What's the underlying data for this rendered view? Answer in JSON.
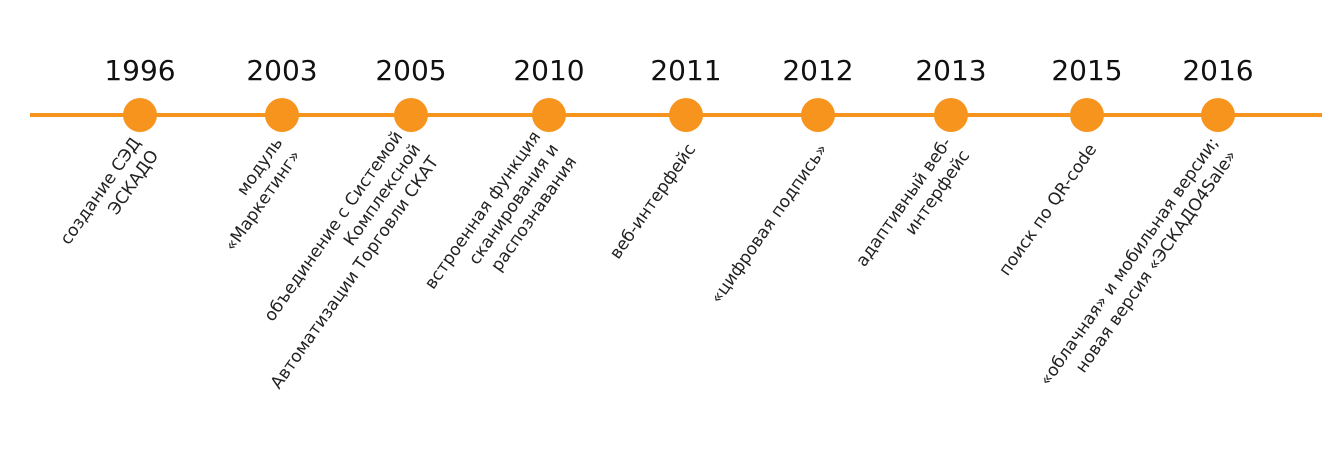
{
  "events": [
    {
      "year": "1996",
      "label": [
        "создание СЭД",
        "ЭСКАДО"
      ]
    },
    {
      "year": "2003",
      "label": [
        "модуль",
        "«Маркетинг»"
      ]
    },
    {
      "year": "2005",
      "label": [
        "объединение с Системой",
        "Комплексной",
        "Автоматизации Торговли СКАТ"
      ]
    },
    {
      "year": "2010",
      "label": [
        "встроенная функция",
        "сканирования и",
        "распознавания"
      ]
    },
    {
      "year": "2011",
      "label": [
        "веб-интерфейс"
      ]
    },
    {
      "year": "2012",
      "label": [
        "«цифровая подпись»"
      ]
    },
    {
      "year": "2013",
      "label": [
        "адаптивный веб-",
        "интерфейс"
      ]
    },
    {
      "year": "2015",
      "label": [
        "поиск по QR-code"
      ]
    },
    {
      "year": "2016",
      "label": [
        "«облачная» и мобильная версии;",
        "новая версия «ЭСКАДО4Sale»"
      ]
    }
  ]
}
